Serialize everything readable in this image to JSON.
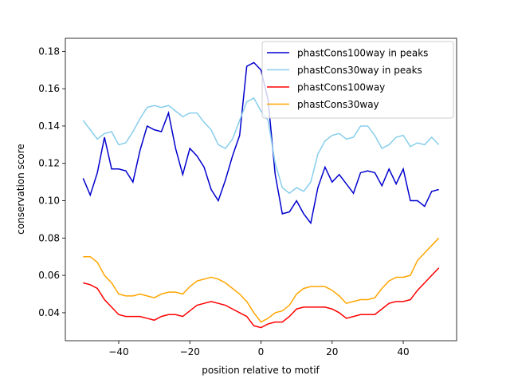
{
  "chart_data": {
    "type": "line",
    "xlabel": "position relative to motif",
    "ylabel": "conservation score",
    "x": [
      -50,
      -48,
      -46,
      -44,
      -42,
      -40,
      -38,
      -36,
      -34,
      -32,
      -30,
      -28,
      -26,
      -24,
      -22,
      -20,
      -18,
      -16,
      -14,
      -12,
      -10,
      -8,
      -6,
      -4,
      -2,
      0,
      2,
      4,
      6,
      8,
      10,
      12,
      14,
      16,
      18,
      20,
      22,
      24,
      26,
      28,
      30,
      32,
      34,
      36,
      38,
      40,
      42,
      44,
      46,
      48,
      50
    ],
    "series": [
      {
        "name": "phastCons100way in peaks",
        "color": "#0000cd",
        "values": [
          0.112,
          0.103,
          0.115,
          0.134,
          0.117,
          0.117,
          0.116,
          0.11,
          0.127,
          0.14,
          0.138,
          0.137,
          0.147,
          0.128,
          0.114,
          0.128,
          0.124,
          0.118,
          0.106,
          0.1,
          0.111,
          0.124,
          0.135,
          0.172,
          0.174,
          0.17,
          0.154,
          0.114,
          0.093,
          0.094,
          0.1,
          0.093,
          0.088,
          0.107,
          0.118,
          0.11,
          0.114,
          0.109,
          0.104,
          0.115,
          0.116,
          0.115,
          0.108,
          0.117,
          0.109,
          0.117,
          0.1,
          0.1,
          0.097,
          0.105,
          0.106
        ]
      },
      {
        "name": "phastCons30way in peaks",
        "color": "#87ceeb",
        "values": [
          0.143,
          0.138,
          0.133,
          0.136,
          0.137,
          0.13,
          0.131,
          0.137,
          0.144,
          0.15,
          0.151,
          0.15,
          0.151,
          0.148,
          0.145,
          0.147,
          0.147,
          0.142,
          0.138,
          0.13,
          0.128,
          0.133,
          0.143,
          0.153,
          0.155,
          0.148,
          0.143,
          0.12,
          0.107,
          0.104,
          0.107,
          0.105,
          0.11,
          0.125,
          0.132,
          0.135,
          0.136,
          0.133,
          0.134,
          0.14,
          0.14,
          0.135,
          0.128,
          0.13,
          0.134,
          0.135,
          0.129,
          0.131,
          0.13,
          0.134,
          0.13
        ]
      },
      {
        "name": "phastCons100way",
        "color": "#ff0000",
        "values": [
          0.056,
          0.055,
          0.053,
          0.047,
          0.043,
          0.039,
          0.038,
          0.038,
          0.038,
          0.037,
          0.036,
          0.038,
          0.039,
          0.039,
          0.038,
          0.041,
          0.044,
          0.045,
          0.046,
          0.045,
          0.044,
          0.042,
          0.04,
          0.038,
          0.033,
          0.032,
          0.034,
          0.035,
          0.035,
          0.038,
          0.042,
          0.043,
          0.043,
          0.043,
          0.043,
          0.042,
          0.04,
          0.037,
          0.038,
          0.039,
          0.039,
          0.039,
          0.042,
          0.045,
          0.046,
          0.046,
          0.047,
          0.052,
          0.056,
          0.06,
          0.064
        ]
      },
      {
        "name": "phastCons30way",
        "color": "#ffa500",
        "values": [
          0.07,
          0.07,
          0.067,
          0.06,
          0.056,
          0.05,
          0.049,
          0.049,
          0.05,
          0.049,
          0.048,
          0.05,
          0.051,
          0.051,
          0.05,
          0.054,
          0.057,
          0.058,
          0.059,
          0.058,
          0.056,
          0.053,
          0.05,
          0.046,
          0.04,
          0.035,
          0.037,
          0.04,
          0.041,
          0.044,
          0.05,
          0.053,
          0.054,
          0.054,
          0.054,
          0.052,
          0.049,
          0.045,
          0.046,
          0.047,
          0.047,
          0.048,
          0.053,
          0.057,
          0.059,
          0.059,
          0.06,
          0.068,
          0.072,
          0.076,
          0.08
        ]
      }
    ],
    "xlim": [
      -55,
      55
    ],
    "ylim": [
      0.025,
      0.187
    ],
    "xticks": [
      {
        "value": -40,
        "label": "−40"
      },
      {
        "value": -20,
        "label": "−20"
      },
      0,
      20,
      40
    ],
    "yticks": [
      0.04,
      0.06,
      0.08,
      {
        "value": 0.1,
        "label": "0.10"
      },
      0.12,
      0.14,
      0.16,
      0.18
    ],
    "legend": "upper right"
  }
}
